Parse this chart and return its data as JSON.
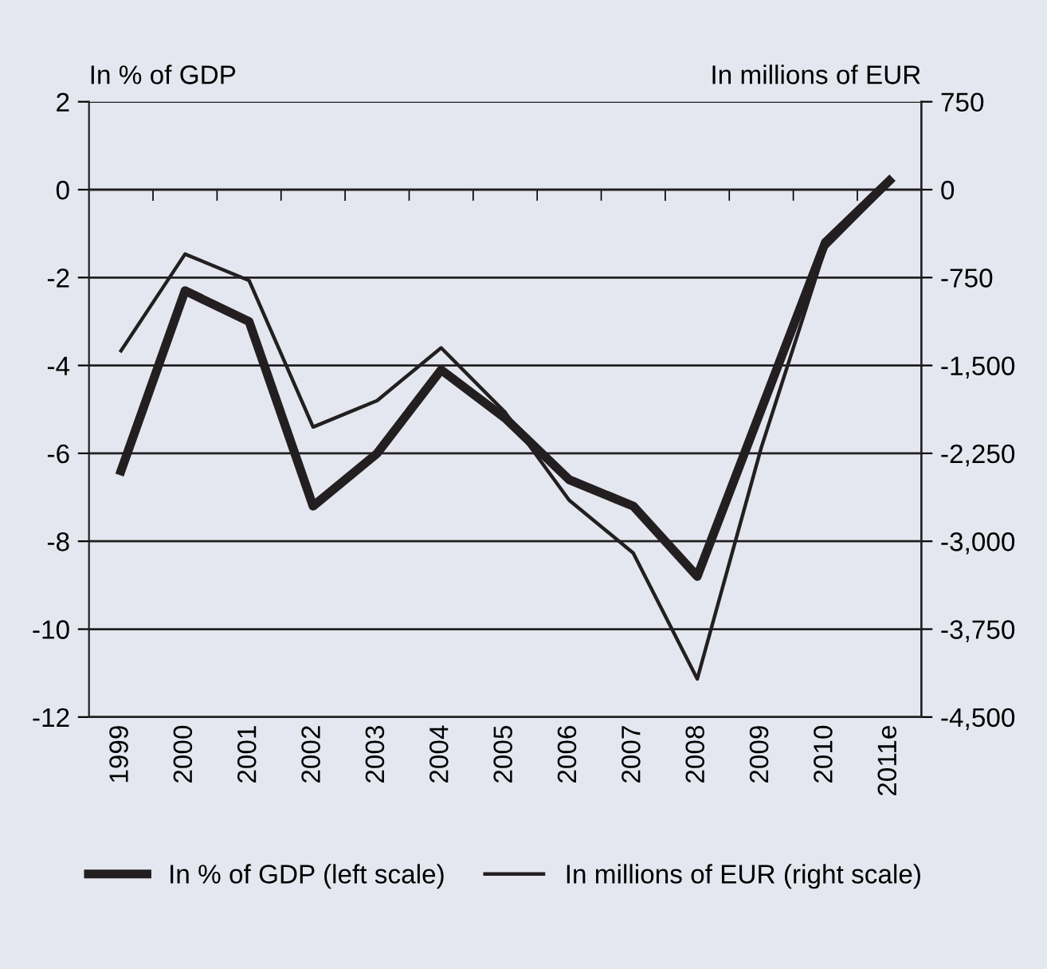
{
  "chart_data": {
    "type": "line",
    "ylabel": "In % of GDP",
    "y2label": "In millions of EUR",
    "categories": [
      "1999",
      "2000",
      "2001",
      "2002",
      "2003",
      "2004",
      "2005",
      "2006",
      "2007",
      "2008",
      "2009",
      "2010",
      "2011e"
    ],
    "series": [
      {
        "name": "In % of GDP (left scale)",
        "color": "#231f20",
        "values": [
          -6.4,
          -2.3,
          -3.0,
          -7.2,
          -6.0,
          -4.1,
          -5.2,
          -6.6,
          -7.2,
          -8.8,
          -5.0,
          -1.2,
          0.2
        ]
      },
      {
        "name": "In millions of EUR (right scale)",
        "color": "#231f20",
        "axis": "y2",
        "values": [
          -1375,
          -550,
          -775,
          -2025,
          -1800,
          -1350,
          -1900,
          -2650,
          -3100,
          -4175,
          -2200,
          -500,
          50
        ]
      }
    ],
    "ylim": [
      -12,
      2
    ],
    "yticks": [
      -12,
      -10,
      -8,
      -6,
      -4,
      -2,
      0,
      2
    ],
    "y2lim": [
      -4500,
      750
    ],
    "y2ticks": [
      {
        "value": -4500,
        "label": "-4,500"
      },
      {
        "value": -3750,
        "label": "-3,750"
      },
      {
        "value": -3000,
        "label": "-3,000"
      },
      {
        "value": -2250,
        "label": "-2,250"
      },
      {
        "value": -1500,
        "label": "-1,500"
      },
      {
        "value": -750,
        "label": "-750"
      },
      0,
      750
    ],
    "grid": "y",
    "legend": "bottom",
    "line_style": "solid",
    "marker": "none"
  }
}
